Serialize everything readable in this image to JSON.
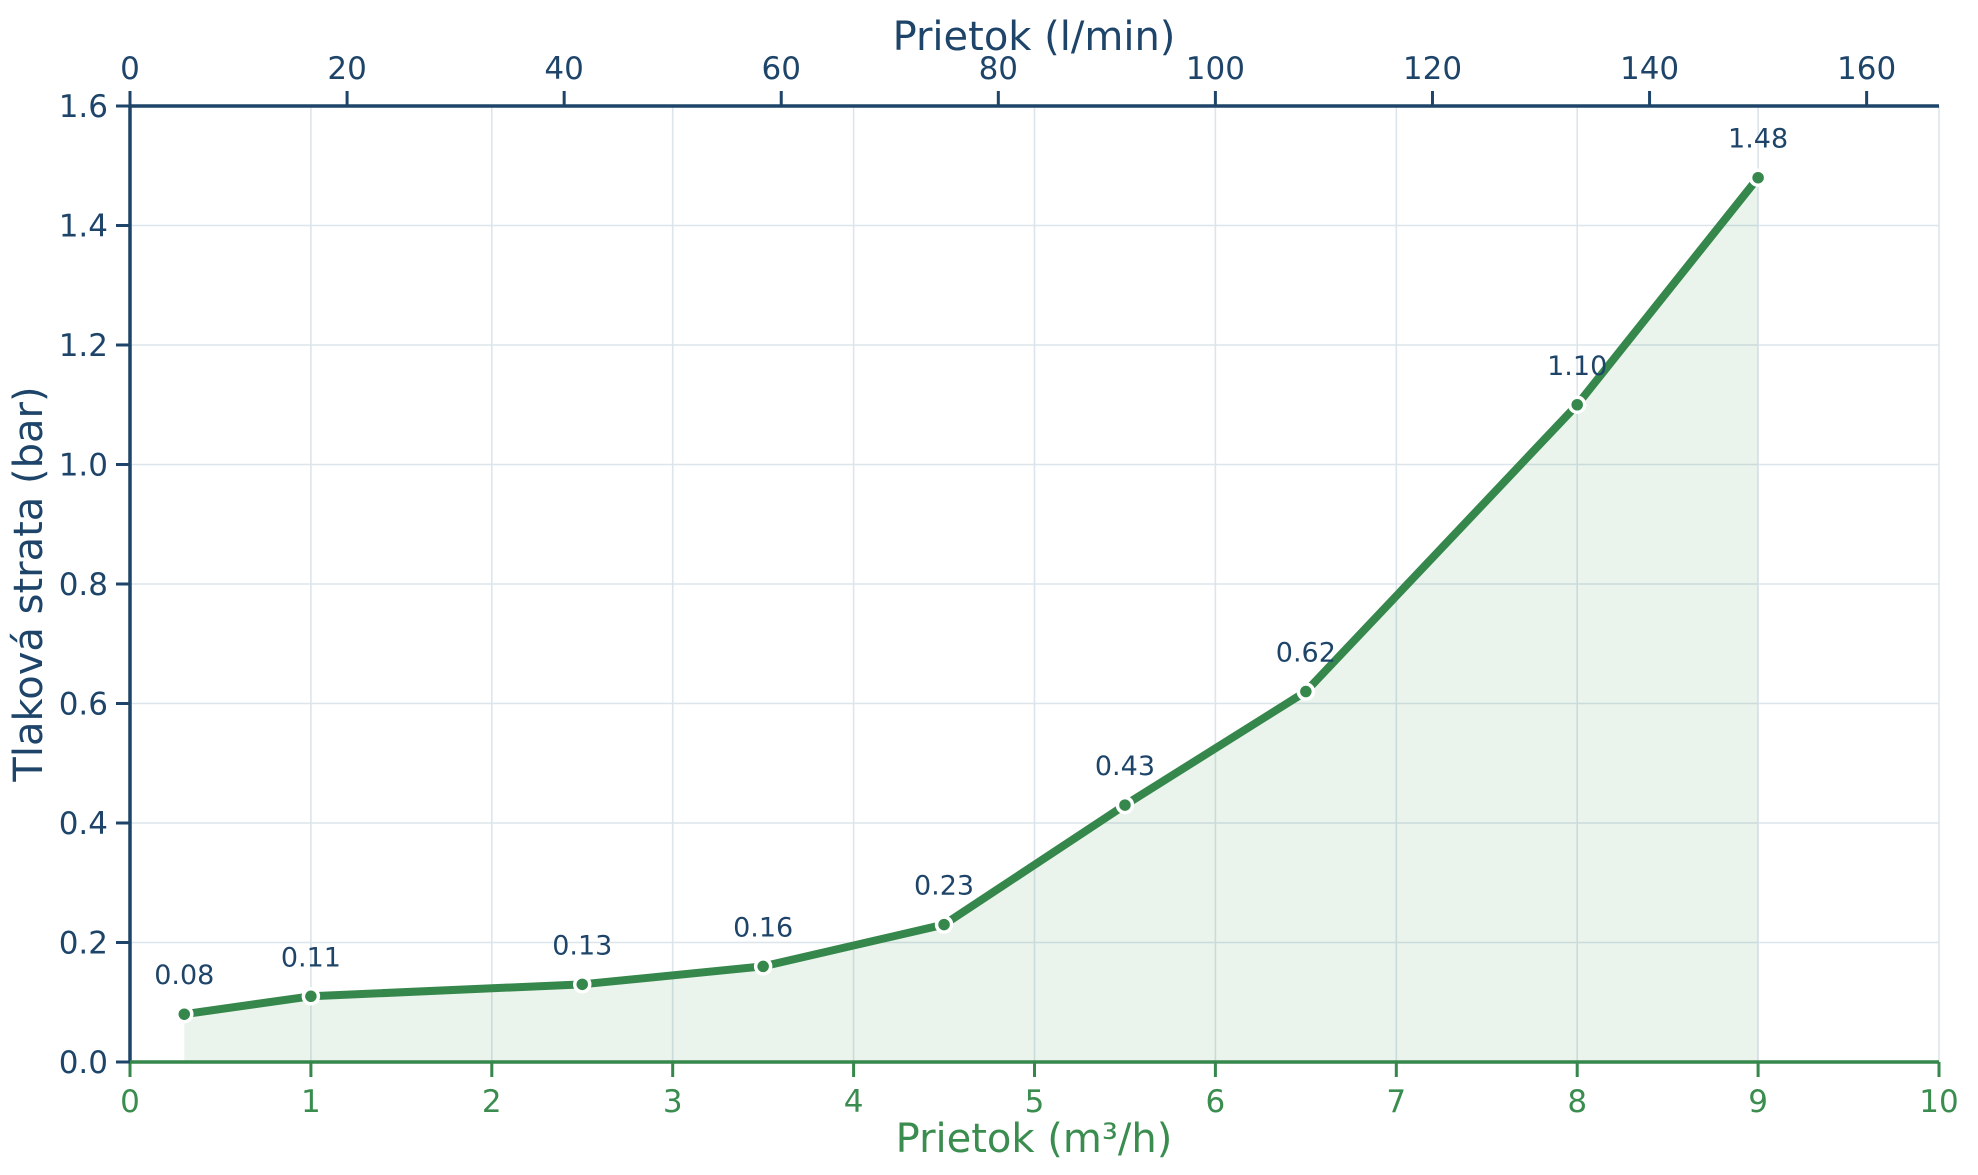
{
  "chart_data": {
    "type": "line",
    "title": "",
    "x": [
      0.3,
      1,
      2.5,
      3.5,
      4.5,
      5.5,
      6.5,
      8,
      9
    ],
    "y": [
      0.08,
      0.11,
      0.13,
      0.16,
      0.23,
      0.43,
      0.62,
      1.1,
      1.48
    ],
    "point_labels": [
      "0.08",
      "0.11",
      "0.13",
      "0.16",
      "0.23",
      "0.43",
      "0.62",
      "1.10",
      "1.48"
    ],
    "bottom_axis": {
      "label": "Prietok (m³/h)",
      "ticks": [
        0,
        1,
        2,
        3,
        4,
        5,
        6,
        7,
        8,
        9,
        10
      ],
      "range": [
        0,
        10
      ]
    },
    "top_axis": {
      "label": "Prietok (l/min)",
      "ticks": [
        0,
        20,
        40,
        60,
        80,
        100,
        120,
        140,
        160
      ],
      "lmin_per_m3h": 16.6667
    },
    "left_axis": {
      "label": "Tlaková strata (bar)",
      "tick_labels": [
        "0.0",
        "0.2",
        "0.4",
        "0.6",
        "0.8",
        "1.0",
        "1.2",
        "1.4",
        "1.6"
      ],
      "tick_values": [
        0,
        0.2,
        0.4,
        0.6,
        0.8,
        1.0,
        1.2,
        1.4,
        1.6
      ],
      "range": [
        0,
        1.6
      ]
    },
    "grid": true,
    "legend": false,
    "area_fill": true,
    "colors": {
      "line": "#35874b",
      "marker_face": "#35874b",
      "marker_edge": "#ffffff",
      "area_fill": "rgba(47,135,72,0.10)",
      "navy": "#1e4569",
      "green_text": "#3a8d4f",
      "green_axis": "#35874b",
      "grid": "#dce5ec",
      "background": "#ffffff"
    }
  }
}
